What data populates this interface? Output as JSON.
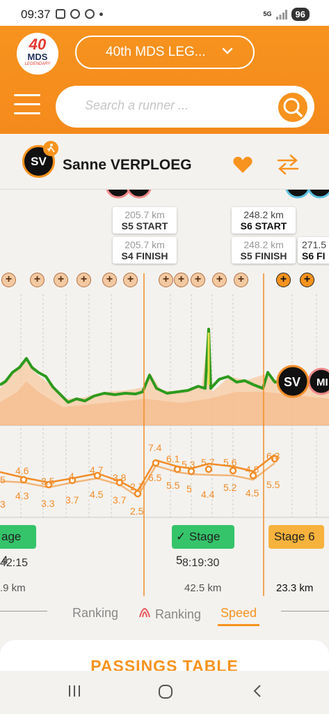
{
  "status_bar": {
    "time": "09:37",
    "network": "5G",
    "battery": "96"
  },
  "header": {
    "logo": {
      "number": "40",
      "brand": "MDS",
      "sub": "LEGENDARY"
    },
    "event_select": {
      "value": "40th MDS LEG...",
      "icon": "chevron-down-icon"
    },
    "search": {
      "placeholder": "Search a runner ...",
      "icon": "search-icon"
    },
    "menu_icon": "hamburger-icon"
  },
  "runner": {
    "initials": "SV",
    "name": "Sanne VERPLOEG",
    "badge_icon": "runner-icon",
    "favorite_icon": "heart-icon",
    "compare_icon": "swap-arrows-icon"
  },
  "markers": [
    {
      "km": "205.7 km",
      "label": "S5 START",
      "style": "light"
    },
    {
      "km": "205.7 km",
      "label": "S4 FINISH",
      "style": "light"
    },
    {
      "km": "248.2 km",
      "label": "S6 START",
      "style": "dark"
    },
    {
      "km": "248.2 km",
      "label": "S5 FINISH",
      "style": "light"
    },
    {
      "km": "271.5",
      "label": "S6 FI",
      "style": "dark"
    }
  ],
  "chart_markers": {
    "runner": "SV",
    "other": "MI"
  },
  "checkpoint_icon": "plus-icon",
  "speed_labels": [
    {
      "v": "5"
    },
    {
      "v": "3"
    },
    {
      "v": "4.6"
    },
    {
      "v": "4.3"
    },
    {
      "v": "3.5"
    },
    {
      "v": "3.3"
    },
    {
      "v": "4"
    },
    {
      "v": "3.7"
    },
    {
      "v": "4.7"
    },
    {
      "v": "4.5"
    },
    {
      "v": "3.8"
    },
    {
      "v": "3.7"
    },
    {
      "v": "2.7"
    },
    {
      "v": "2.5"
    },
    {
      "v": "7.4"
    },
    {
      "v": "6.5"
    },
    {
      "v": "6.1"
    },
    {
      "v": "5.5"
    },
    {
      "v": "5.3"
    },
    {
      "v": "5"
    },
    {
      "v": "5.7"
    },
    {
      "v": "4.4"
    },
    {
      "v": "5.6"
    },
    {
      "v": "5.2"
    },
    {
      "v": "4.8"
    },
    {
      "v": "4.5"
    },
    {
      "v": "6.3"
    },
    {
      "v": "5.5"
    }
  ],
  "stages": [
    {
      "label": "age 4",
      "time": "42:15",
      "distance": ".9 km",
      "color": "#35c46a"
    },
    {
      "label": "Stage 5",
      "time": "8:19:30",
      "distance": "42.5 km",
      "color": "#35c46a",
      "check_icon": "check-icon"
    },
    {
      "label": "Stage 6",
      "time": "",
      "distance": "23.3 km",
      "color": "#f6b23c"
    }
  ],
  "tabs": [
    {
      "label": "Ranking",
      "active": false
    },
    {
      "label": "Ranking",
      "active": false,
      "icon": "runner-outline-icon"
    },
    {
      "label": "Speed",
      "active": true
    }
  ],
  "passings_title": "PASSINGS TABLE",
  "nav": {
    "recent": "recent-apps-icon",
    "home": "home-icon",
    "back": "back-icon"
  },
  "colors": {
    "accent": "#f7931e",
    "elevation": "#2e9a1e",
    "speed": "#f28c28",
    "stage_done": "#35c46a",
    "stage_current": "#f6b23c"
  }
}
